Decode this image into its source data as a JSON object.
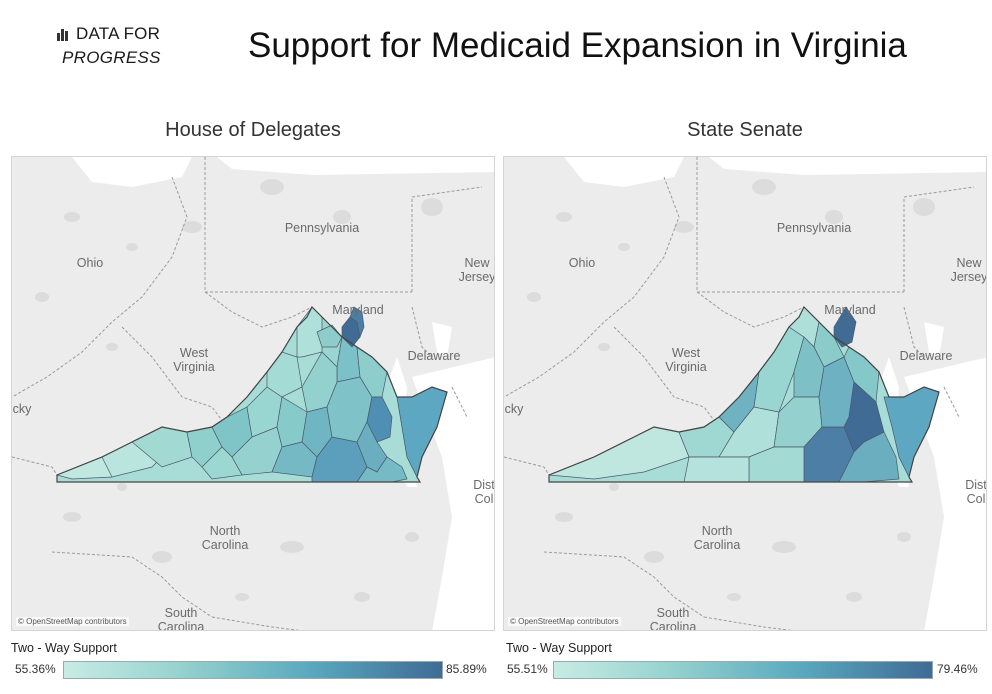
{
  "logo": {
    "line1": "DATA FOR",
    "line2": "PROGRESS"
  },
  "title": "Support for Medicaid Expansion in Virginia",
  "panels": [
    {
      "title": "House of Delegates",
      "attribution": "© OpenStreetMap contributors",
      "legend": {
        "title": "Two - Way Support",
        "min": "55.36%",
        "max": "85.89%"
      }
    },
    {
      "title": "State Senate",
      "attribution": "© OpenStreetMap contributors",
      "legend": {
        "title": "Two - Way Support",
        "min": "55.51%",
        "max": "79.46%"
      }
    }
  ],
  "map_labels": {
    "ohio": "Ohio",
    "pennsylvania": "Pennsylvania",
    "new": "New",
    "jersey": "Jersey",
    "maryland": "Maryland",
    "delaware": "Delaware",
    "west": "West",
    "virginia": "Virginia",
    "kentucky": "cky",
    "north": "North",
    "carolina": "Carolina",
    "south": "South",
    "south_carolina": "Carolina",
    "dist": "Dist",
    "col": "Col"
  },
  "colors": {
    "low": "#c8ebe4",
    "mid": "#5aa9bf",
    "high": "#3f6b95",
    "land": "#ececec",
    "water": "#ffffff",
    "lake": "#d9d9d9"
  }
}
